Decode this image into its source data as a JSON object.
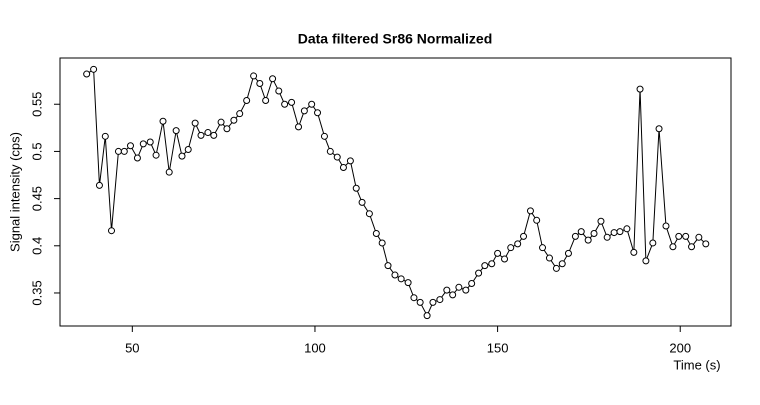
{
  "chart_data": {
    "type": "line",
    "title": "Data filtered Sr86 Normalized",
    "x_label": "Time (s)",
    "y_label": "Signal intensity (cps)",
    "color": "#000000",
    "x": [
      37.5,
      39.4,
      41.0,
      42.6,
      44.3,
      46.2,
      47.8,
      49.5,
      51.4,
      53.0,
      54.9,
      56.5,
      58.4,
      60.1,
      62.0,
      63.6,
      65.3,
      67.2,
      68.8,
      70.7,
      72.3,
      74.3,
      75.9,
      77.8,
      79.4,
      81.3,
      83.2,
      84.9,
      86.5,
      88.4,
      90.1,
      91.7,
      93.6,
      95.5,
      97.1,
      99.1,
      100.7,
      102.6,
      104.2,
      106.1,
      107.8,
      109.7,
      111.3,
      112.9,
      114.9,
      116.8,
      118.4,
      120.0,
      121.9,
      123.6,
      125.5,
      127.1,
      128.8,
      130.7,
      132.3,
      134.2,
      136.1,
      137.7,
      139.4,
      141.3,
      142.9,
      144.8,
      146.5,
      148.4,
      150.0,
      151.9,
      153.6,
      155.5,
      157.1,
      159.0,
      160.7,
      162.3,
      164.2,
      166.1,
      167.7,
      169.4,
      171.3,
      172.9,
      174.8,
      176.4,
      178.3,
      180.0,
      181.9,
      183.5,
      185.4,
      187.3,
      189.0,
      190.6,
      192.5,
      194.2,
      196.1,
      198.0,
      199.6,
      201.5,
      203.1,
      205.1,
      207.0
    ],
    "values": [
      0.582,
      0.587,
      0.464,
      0.516,
      0.416,
      0.5,
      0.5,
      0.506,
      0.493,
      0.508,
      0.51,
      0.496,
      0.532,
      0.478,
      0.522,
      0.495,
      0.502,
      0.53,
      0.517,
      0.52,
      0.517,
      0.531,
      0.524,
      0.533,
      0.54,
      0.554,
      0.58,
      0.572,
      0.554,
      0.577,
      0.564,
      0.55,
      0.552,
      0.526,
      0.543,
      0.55,
      0.541,
      0.516,
      0.5,
      0.494,
      0.483,
      0.49,
      0.461,
      0.446,
      0.434,
      0.413,
      0.403,
      0.379,
      0.369,
      0.365,
      0.361,
      0.345,
      0.34,
      0.326,
      0.34,
      0.343,
      0.353,
      0.348,
      0.356,
      0.353,
      0.36,
      0.371,
      0.379,
      0.381,
      0.392,
      0.386,
      0.398,
      0.402,
      0.41,
      0.437,
      0.427,
      0.398,
      0.387,
      0.376,
      0.381,
      0.392,
      0.41,
      0.415,
      0.406,
      0.413,
      0.426,
      0.409,
      0.414,
      0.415,
      0.418,
      0.393,
      0.566,
      0.384,
      0.403,
      0.524,
      0.421,
      0.399,
      0.41,
      0.41,
      0.399,
      0.409,
      0.402
    ],
    "xlim": [
      30.2,
      213.9
    ],
    "ylim": [
      0.315,
      0.599
    ],
    "xticks": [
      50,
      100,
      150,
      200
    ],
    "yticks": [
      0.35,
      0.4,
      0.45,
      0.5,
      0.55
    ]
  }
}
